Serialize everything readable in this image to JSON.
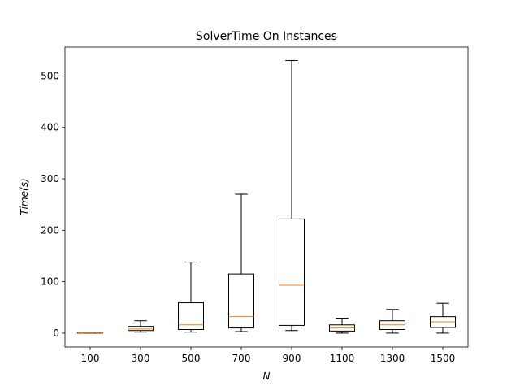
{
  "chart_data": {
    "type": "box",
    "title": "SolverTime On Instances",
    "xlabel": "N",
    "ylabel": "Time(s)",
    "ylim": [
      -27,
      556
    ],
    "yticks": [
      0,
      100,
      200,
      300,
      400,
      500
    ],
    "grid": false,
    "categories": [
      "100",
      "300",
      "500",
      "700",
      "900",
      "1100",
      "1300",
      "1500"
    ],
    "boxes": [
      {
        "category": "100",
        "whisker_low": 0,
        "q1": 0,
        "median": 0.5,
        "q3": 1,
        "whisker_high": 1.5
      },
      {
        "category": "300",
        "whisker_low": 2,
        "q1": 5,
        "median": 8,
        "q3": 13,
        "whisker_high": 24
      },
      {
        "category": "500",
        "whisker_low": 2,
        "q1": 7,
        "median": 16,
        "q3": 59,
        "whisker_high": 138
      },
      {
        "category": "700",
        "whisker_low": 3,
        "q1": 10,
        "median": 32,
        "q3": 115,
        "whisker_high": 270
      },
      {
        "category": "900",
        "whisker_low": 5,
        "q1": 15,
        "median": 93,
        "q3": 222,
        "whisker_high": 530
      },
      {
        "category": "1100",
        "whisker_low": 0,
        "q1": 4,
        "median": 10,
        "q3": 16,
        "whisker_high": 29
      },
      {
        "category": "1300",
        "whisker_low": 0,
        "q1": 7,
        "median": 16,
        "q3": 24,
        "whisker_high": 46
      },
      {
        "category": "1500",
        "whisker_low": 0,
        "q1": 11,
        "median": 22,
        "q3": 32,
        "whisker_high": 58
      }
    ],
    "colors": {
      "box": "#000000",
      "median": "#ff7f0e",
      "background": "#ffffff"
    }
  }
}
